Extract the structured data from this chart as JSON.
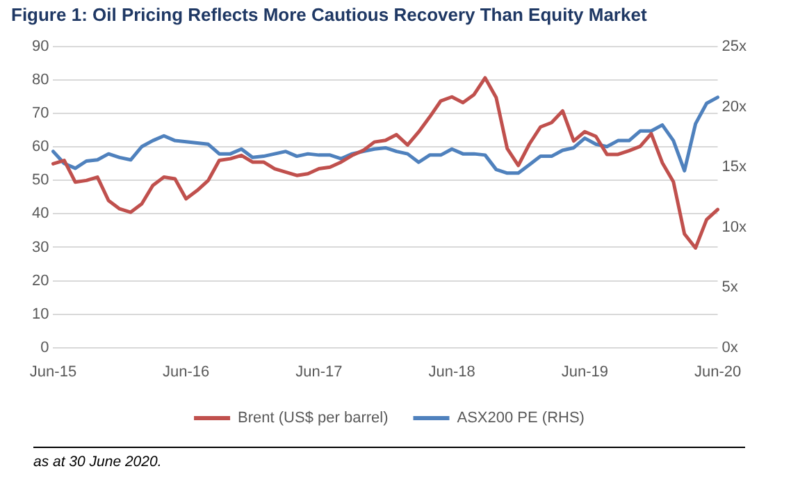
{
  "chart_data": {
    "type": "line",
    "title": "Figure 1: Oil Pricing Reflects More Cautious Recovery Than Equity Market",
    "categories": [
      "Jun-15",
      null,
      null,
      null,
      null,
      null,
      null,
      null,
      null,
      null,
      null,
      null,
      "Jun-16",
      null,
      null,
      null,
      null,
      null,
      null,
      null,
      null,
      null,
      null,
      null,
      "Jun-17",
      null,
      null,
      null,
      null,
      null,
      null,
      null,
      null,
      null,
      null,
      null,
      "Jun-18",
      null,
      null,
      null,
      null,
      null,
      null,
      null,
      null,
      null,
      null,
      null,
      "Jun-19",
      null,
      null,
      null,
      null,
      null,
      null,
      null,
      null,
      null,
      null,
      null,
      "Jun-20"
    ],
    "series": [
      {
        "name": "Brent (US$ per barrel)",
        "color": "#c0504d",
        "values": [
          55,
          56,
          49.5,
          50,
          51,
          44,
          41.5,
          40.5,
          43,
          48.5,
          51,
          50.5,
          44.5,
          47,
          50,
          56,
          56.5,
          57.5,
          55.5,
          55.5,
          53.5,
          52.5,
          51.5,
          52,
          53.5,
          54,
          55.5,
          57.5,
          59,
          61.5,
          62,
          63.7,
          60.6,
          64.5,
          69,
          73.8,
          75,
          73.3,
          75.7,
          80.7,
          74.8,
          59.5,
          54.5,
          60.9,
          66,
          67.3,
          70.8,
          61.8,
          64.6,
          63.2,
          57.8,
          57.8,
          58.9,
          60.2,
          64,
          55.3,
          49.6,
          34,
          29.8,
          38.3,
          41.3
        ]
      },
      {
        "name": "ASX200 PE (RHS)",
        "color": "#4f81bd",
        "axis": "y2",
        "values": [
          16.3,
          15.3,
          14.9,
          15.5,
          15.6,
          16.1,
          15.8,
          15.6,
          16.7,
          17.2,
          17.6,
          17.2,
          17.1,
          17.0,
          16.9,
          16.1,
          16.1,
          16.5,
          15.8,
          15.9,
          16.1,
          16.3,
          15.9,
          16.1,
          16.0,
          16.0,
          15.7,
          16.1,
          16.3,
          16.5,
          16.6,
          16.3,
          16.1,
          15.4,
          16.0,
          16.0,
          16.5,
          16.1,
          16.1,
          16.0,
          14.8,
          14.5,
          14.5,
          15.2,
          15.9,
          15.9,
          16.4,
          16.6,
          17.4,
          16.9,
          16.7,
          17.2,
          17.2,
          18.0,
          18.0,
          18.5,
          17.2,
          14.7,
          18.6,
          20.3,
          20.8
        ]
      }
    ],
    "ylim": [
      0,
      90
    ],
    "yticks": [
      0,
      10,
      20,
      30,
      40,
      50,
      60,
      70,
      80,
      90
    ],
    "y2lim": [
      0,
      25
    ],
    "y2ticks": [
      {
        "value": 0,
        "label": "0x"
      },
      {
        "value": 5,
        "label": "5x"
      },
      {
        "value": 10,
        "label": "10x"
      },
      {
        "value": 15,
        "label": "15x"
      },
      {
        "value": 20,
        "label": "20x"
      },
      {
        "value": 25,
        "label": "25x"
      }
    ],
    "grid": "y",
    "legend": "bottom",
    "marker": "none",
    "line_style": "solid",
    "annotations": [
      "as at 30 June 2020."
    ]
  }
}
